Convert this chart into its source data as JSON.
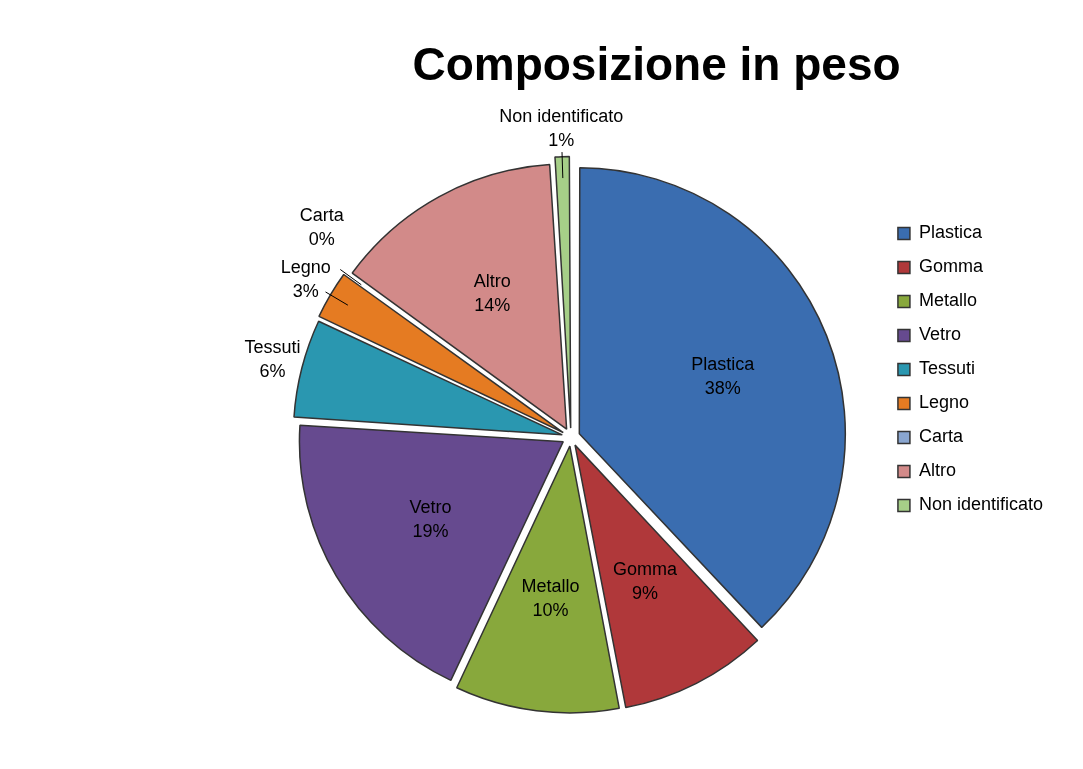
{
  "chart_data": {
    "type": "pie",
    "title": "Composizione in peso",
    "categories": [
      "Plastica",
      "Gomma",
      "Metallo",
      "Vetro",
      "Tessuti",
      "Legno",
      "Carta",
      "Altro",
      "Non identificato"
    ],
    "values": [
      38,
      9,
      10,
      19,
      6,
      3,
      0,
      14,
      1
    ],
    "value_labels": [
      "38%",
      "9%",
      "10%",
      "19%",
      "6%",
      "3%",
      "0%",
      "14%",
      "1%"
    ],
    "colors": [
      "#3a6db0",
      "#b0383a",
      "#88a83c",
      "#664a8f",
      "#2a97b0",
      "#e57b22",
      "#8aa6d0",
      "#d28a89",
      "#a6cf88"
    ],
    "legend": "right"
  }
}
